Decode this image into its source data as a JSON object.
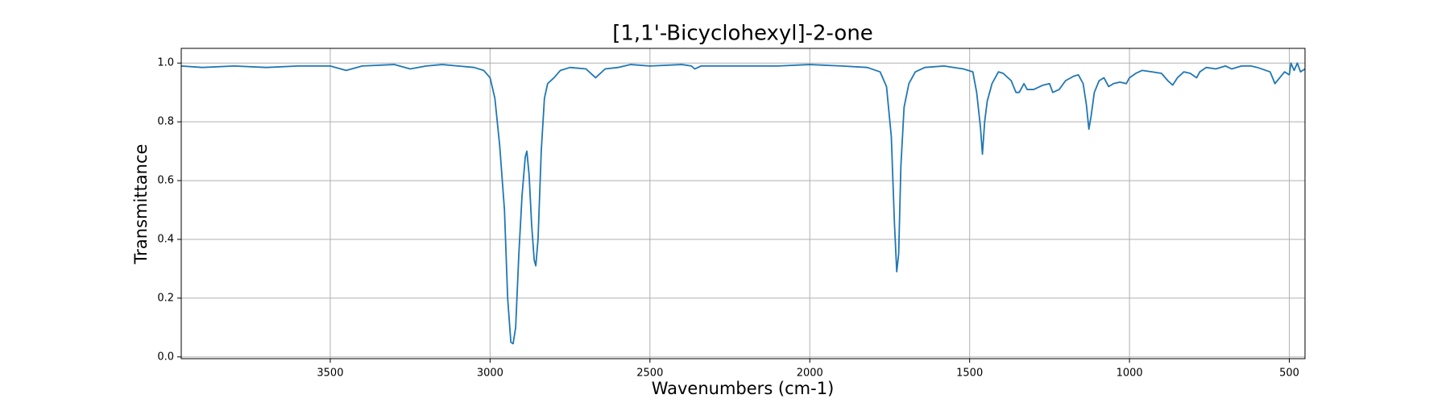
{
  "chart_data": {
    "type": "line",
    "title": "[1,1'-Bicyclohexyl]-2-one",
    "x_label": "Wavenumbers (cm-1)",
    "y_label": "Transmittance",
    "xlim": [
      3966,
      451
    ],
    "ylim": [
      -0.006,
      1.05
    ],
    "xticks": [
      3500,
      3000,
      2500,
      2000,
      1500,
      1000,
      500
    ],
    "yticks": [
      {
        "value": 0,
        "label": "0.0"
      },
      0.2,
      0.4,
      0.6,
      0.8,
      {
        "value": 1,
        "label": "1.0"
      }
    ],
    "grid": true,
    "series": [
      {
        "color": "#1f77b4",
        "x": [
          3966,
          3900,
          3800,
          3700,
          3600,
          3500,
          3450,
          3400,
          3300,
          3250,
          3200,
          3150,
          3100,
          3050,
          3020,
          3000,
          2985,
          2970,
          2955,
          2945,
          2935,
          2928,
          2920,
          2910,
          2900,
          2890,
          2885,
          2878,
          2870,
          2862,
          2857,
          2850,
          2840,
          2830,
          2820,
          2800,
          2780,
          2750,
          2700,
          2670,
          2640,
          2600,
          2560,
          2500,
          2400,
          2370,
          2360,
          2340,
          2200,
          2100,
          2000,
          1900,
          1820,
          1780,
          1760,
          1745,
          1735,
          1728,
          1722,
          1715,
          1705,
          1690,
          1670,
          1640,
          1580,
          1520,
          1490,
          1478,
          1466,
          1460,
          1453,
          1445,
          1430,
          1410,
          1395,
          1370,
          1355,
          1345,
          1330,
          1320,
          1300,
          1270,
          1250,
          1240,
          1220,
          1200,
          1175,
          1160,
          1145,
          1135,
          1127,
          1120,
          1110,
          1095,
          1080,
          1065,
          1050,
          1030,
          1010,
          1000,
          980,
          960,
          930,
          900,
          880,
          865,
          850,
          830,
          810,
          790,
          780,
          760,
          730,
          700,
          680,
          650,
          620,
          600,
          560,
          545,
          530,
          515,
          500,
          495,
          485,
          475,
          465,
          451
        ],
        "values": [
          0.99,
          0.985,
          0.99,
          0.985,
          0.99,
          0.99,
          0.975,
          0.99,
          0.995,
          0.98,
          0.99,
          0.995,
          0.99,
          0.985,
          0.975,
          0.95,
          0.88,
          0.72,
          0.5,
          0.2,
          0.05,
          0.045,
          0.1,
          0.35,
          0.55,
          0.68,
          0.7,
          0.62,
          0.45,
          0.33,
          0.31,
          0.4,
          0.7,
          0.88,
          0.93,
          0.95,
          0.975,
          0.985,
          0.98,
          0.95,
          0.98,
          0.985,
          0.995,
          0.99,
          0.995,
          0.99,
          0.98,
          0.99,
          0.99,
          0.99,
          0.995,
          0.99,
          0.985,
          0.97,
          0.92,
          0.75,
          0.45,
          0.29,
          0.35,
          0.65,
          0.85,
          0.93,
          0.97,
          0.985,
          0.99,
          0.98,
          0.97,
          0.9,
          0.78,
          0.69,
          0.8,
          0.87,
          0.93,
          0.97,
          0.965,
          0.94,
          0.9,
          0.9,
          0.93,
          0.91,
          0.91,
          0.925,
          0.93,
          0.9,
          0.91,
          0.94,
          0.955,
          0.96,
          0.93,
          0.86,
          0.775,
          0.82,
          0.9,
          0.94,
          0.95,
          0.92,
          0.93,
          0.935,
          0.93,
          0.95,
          0.965,
          0.975,
          0.97,
          0.965,
          0.94,
          0.925,
          0.95,
          0.97,
          0.965,
          0.95,
          0.97,
          0.985,
          0.98,
          0.99,
          0.98,
          0.99,
          0.99,
          0.985,
          0.97,
          0.93,
          0.95,
          0.97,
          0.96,
          1.0,
          0.975,
          1.0,
          0.97,
          0.98
        ]
      }
    ]
  }
}
